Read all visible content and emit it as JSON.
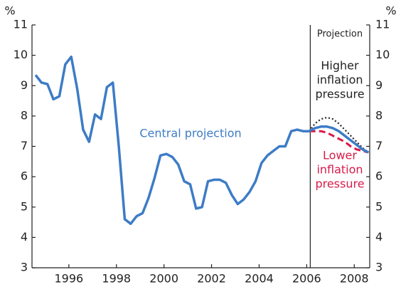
{
  "chart_data": {
    "type": "line",
    "ylabel": "%",
    "y2label": "%",
    "xlim": [
      1994.45,
      2008.65
    ],
    "ylim": [
      3,
      11
    ],
    "xticks": [
      1996,
      1998,
      2000,
      2002,
      2004,
      2006,
      2008
    ],
    "yticks": [
      3,
      4,
      5,
      6,
      7,
      8,
      9,
      10,
      11
    ],
    "projection_start": 2006.15,
    "annotations": {
      "projection": "Projection",
      "central": "Central projection",
      "higher": [
        "Higher",
        "inflation",
        "pressure"
      ],
      "lower": [
        "Lower",
        "inflation",
        "pressure"
      ]
    },
    "series": [
      {
        "name": "Central projection",
        "color": "#3d7cc6",
        "style": "solid",
        "width": 3.5,
        "x": [
          1994.6,
          1994.85,
          1995.1,
          1995.35,
          1995.6,
          1995.85,
          1996.1,
          1996.35,
          1996.6,
          1996.85,
          1997.1,
          1997.35,
          1997.6,
          1997.85,
          1998.1,
          1998.35,
          1998.6,
          1998.85,
          1999.1,
          1999.35,
          1999.6,
          1999.85,
          2000.1,
          2000.35,
          2000.6,
          2000.85,
          2001.1,
          2001.35,
          2001.6,
          2001.85,
          2002.1,
          2002.35,
          2002.6,
          2002.85,
          2003.1,
          2003.35,
          2003.6,
          2003.85,
          2004.1,
          2004.35,
          2004.6,
          2004.85,
          2005.1,
          2005.35,
          2005.6,
          2005.85,
          2006.1,
          2006.35,
          2006.6,
          2006.85,
          2007.1,
          2007.35,
          2007.6,
          2007.85,
          2008.1,
          2008.35,
          2008.6
        ],
        "values": [
          9.35,
          9.1,
          9.05,
          8.55,
          8.65,
          9.7,
          9.95,
          8.9,
          7.55,
          7.15,
          8.05,
          7.9,
          8.95,
          9.1,
          7.0,
          4.6,
          4.45,
          4.7,
          4.8,
          5.3,
          5.95,
          6.7,
          6.75,
          6.65,
          6.4,
          5.85,
          5.75,
          4.95,
          5.0,
          5.85,
          5.9,
          5.9,
          5.8,
          5.4,
          5.1,
          5.25,
          5.5,
          5.85,
          6.45,
          6.7,
          6.85,
          7.0,
          7.0,
          7.5,
          7.55,
          7.5,
          7.5,
          7.6,
          7.65,
          7.65,
          7.6,
          7.5,
          7.35,
          7.2,
          7.05,
          6.9,
          6.8
        ]
      },
      {
        "name": "Higher inflation pressure",
        "color": "#222222",
        "style": "dotted",
        "width": 2.2,
        "x": [
          2006.1,
          2006.35,
          2006.6,
          2006.85,
          2007.1,
          2007.35,
          2007.6,
          2007.85,
          2008.1,
          2008.35,
          2008.6
        ],
        "values": [
          7.5,
          7.75,
          7.9,
          7.95,
          7.9,
          7.75,
          7.55,
          7.35,
          7.15,
          6.95,
          6.8
        ]
      },
      {
        "name": "Lower inflation pressure",
        "color": "#d81b4a",
        "style": "dashed",
        "width": 3,
        "x": [
          2006.1,
          2006.35,
          2006.6,
          2006.85,
          2007.1,
          2007.35,
          2007.6,
          2007.85,
          2008.1,
          2008.35,
          2008.6
        ],
        "values": [
          7.5,
          7.5,
          7.5,
          7.45,
          7.35,
          7.25,
          7.15,
          7.0,
          6.9,
          6.85,
          6.8
        ]
      }
    ]
  }
}
